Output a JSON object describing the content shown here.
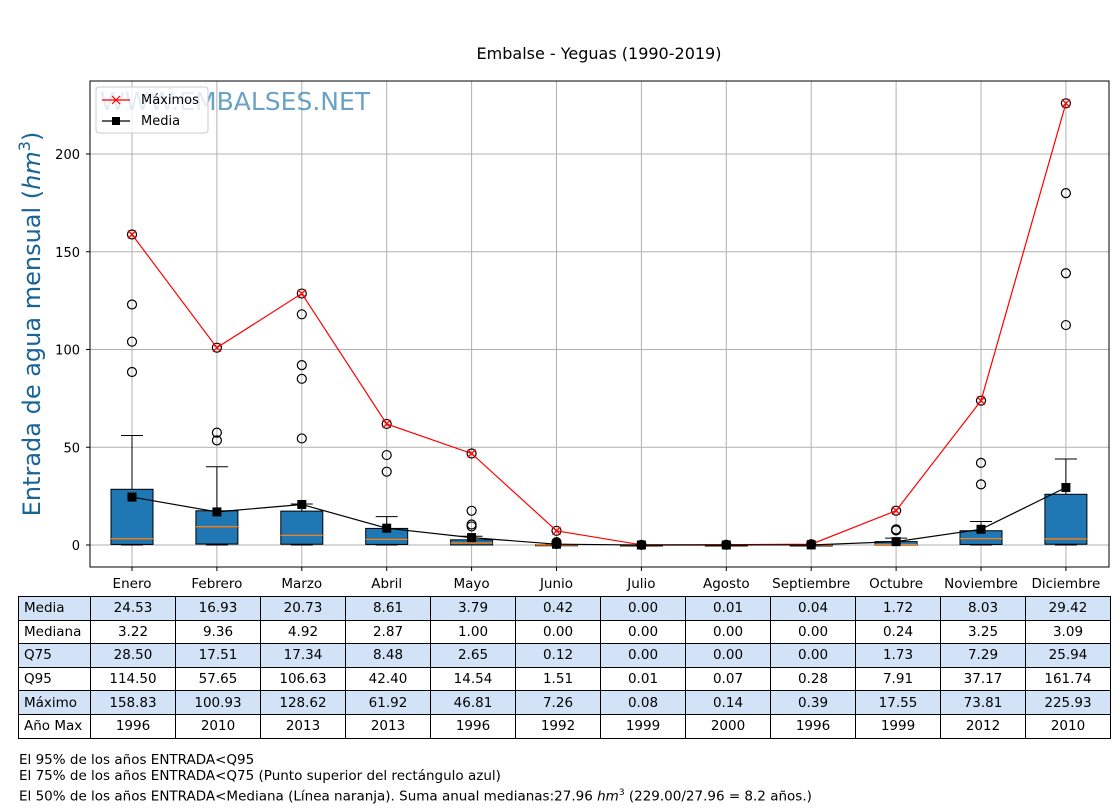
{
  "chart_data": {
    "type": "box",
    "title": "Embalse - Yeguas (1990-2019)",
    "ylabel": "Entrada de agua mensual",
    "ylabel_unit": "hm",
    "ylabel_exp": "3",
    "watermark": "WWW.EMBALSES.NET",
    "ylim": [
      -12,
      236
    ],
    "yticks": [
      0,
      50,
      100,
      150,
      200
    ],
    "grid": true,
    "legend_position": "top-left",
    "categories": [
      "Enero",
      "Febrero",
      "Marzo",
      "Abril",
      "Mayo",
      "Junio",
      "Julio",
      "Agosto",
      "Septiembre",
      "Octubre",
      "Noviembre",
      "Diciembre"
    ],
    "series": [
      {
        "name": "Máximos",
        "color": "#ff0000",
        "marker": "x",
        "values": [
          158.83,
          100.93,
          128.62,
          61.92,
          46.81,
          7.26,
          0.08,
          0.14,
          0.39,
          17.55,
          73.81,
          225.93
        ]
      },
      {
        "name": "Media",
        "color": "#000000",
        "marker": "square",
        "values": [
          24.53,
          16.93,
          20.73,
          8.61,
          3.79,
          0.42,
          0.0,
          0.01,
          0.04,
          1.72,
          8.03,
          29.42
        ]
      }
    ],
    "boxes": {
      "q25": [
        0.3,
        0.5,
        0.4,
        0.3,
        0.0,
        0,
        0,
        0,
        0,
        0,
        0.3,
        0.4
      ],
      "median": [
        3.22,
        9.36,
        4.92,
        2.87,
        1.0,
        0.0,
        0.0,
        0.0,
        0.0,
        0.24,
        3.25,
        3.09
      ],
      "q75": [
        28.5,
        17.51,
        17.34,
        8.48,
        2.65,
        0.12,
        0.0,
        0.0,
        0.0,
        1.73,
        7.29,
        25.94
      ],
      "whisker_low": [
        0,
        0,
        0,
        0,
        0,
        0,
        0,
        0,
        0,
        0,
        0,
        0
      ],
      "whisker_high": [
        56,
        40,
        21,
        14.5,
        4.5,
        0.3,
        0,
        0,
        0,
        3.5,
        12,
        44
      ],
      "outliers": [
        [
          88.5,
          104,
          123,
          158.83
        ],
        [
          53.5,
          57.5,
          100.93
        ],
        [
          54.5,
          85,
          92,
          118,
          128.62
        ],
        [
          37.5,
          46,
          61.92
        ],
        [
          9.5,
          10.5,
          17.5,
          46.81
        ],
        [
          0.5,
          1,
          1.5,
          7.26
        ],
        [
          0.08
        ],
        [
          0.14
        ],
        [
          0.39
        ],
        [
          7.5,
          8,
          17.55
        ],
        [
          31,
          42,
          73.81
        ],
        [
          112.5,
          139,
          180,
          225.93
        ]
      ],
      "box_color": "#1f77b4",
      "median_color": "#ff7f0e"
    },
    "box_color": "#1f77b4",
    "median_color": "#ff7f0e"
  },
  "table": {
    "rows": [
      {
        "label": "Media",
        "values": [
          "24.53",
          "16.93",
          "20.73",
          "8.61",
          "3.79",
          "0.42",
          "0.00",
          "0.01",
          "0.04",
          "1.72",
          "8.03",
          "29.42"
        ]
      },
      {
        "label": "Mediana",
        "values": [
          "3.22",
          "9.36",
          "4.92",
          "2.87",
          "1.00",
          "0.00",
          "0.00",
          "0.00",
          "0.00",
          "0.24",
          "3.25",
          "3.09"
        ]
      },
      {
        "label": "Q75",
        "values": [
          "28.50",
          "17.51",
          "17.34",
          "8.48",
          "2.65",
          "0.12",
          "0.00",
          "0.00",
          "0.00",
          "1.73",
          "7.29",
          "25.94"
        ]
      },
      {
        "label": "Q95",
        "values": [
          "114.50",
          "57.65",
          "106.63",
          "42.40",
          "14.54",
          "1.51",
          "0.01",
          "0.07",
          "0.28",
          "7.91",
          "37.17",
          "161.74"
        ]
      },
      {
        "label": "Máximo",
        "values": [
          "158.83",
          "100.93",
          "128.62",
          "61.92",
          "46.81",
          "7.26",
          "0.08",
          "0.14",
          "0.39",
          "17.55",
          "73.81",
          "225.93"
        ]
      },
      {
        "label": "Año Max",
        "values": [
          "1996",
          "2010",
          "2013",
          "2013",
          "1996",
          "1992",
          "1999",
          "2000",
          "1996",
          "1999",
          "2012",
          "2010"
        ]
      }
    ]
  },
  "notes": {
    "line1": "El 95% de los años ENTRADA<Q95",
    "line2": "El 75% de los años ENTRADA<Q75 (Punto superior del rectángulo azul)",
    "line3_a": "El 50% de los años ENTRADA<Mediana (Línea naranja). Suma anual medianas:27.96 ",
    "line3_unit": "hm",
    "line3_exp": "3",
    "line3_b": " (229.00/27.96 = 8.2 años.)"
  }
}
